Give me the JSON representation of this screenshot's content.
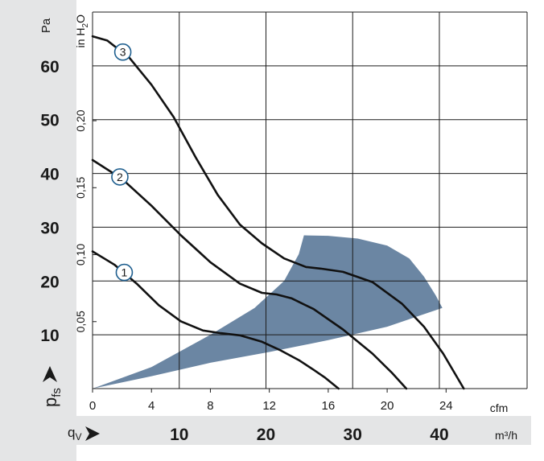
{
  "chart_data": {
    "type": "line",
    "y_primary": {
      "unit": "Pa",
      "ticks": [
        10,
        20,
        30,
        40,
        50,
        60
      ],
      "range": [
        0,
        70
      ]
    },
    "y_secondary": {
      "unit_main": "in H",
      "unit_sub": "2",
      "unit_tail": "O",
      "tick_labels": [
        "0,05",
        "0,10",
        "0,15",
        "0,20"
      ],
      "tick_values_pa": [
        12.45,
        24.9,
        37.35,
        49.8
      ]
    },
    "y_symbol": {
      "main": "p",
      "sub": "fs"
    },
    "x_primary": {
      "unit": "cfm",
      "ticks": [
        0,
        4,
        8,
        12,
        16,
        20,
        24
      ],
      "range": [
        0,
        29.5
      ]
    },
    "x_secondary": {
      "symbol_main": "q",
      "symbol_sub": "V",
      "unit": "m³/h",
      "tick_labels": [
        "10",
        "20",
        "30",
        "40"
      ],
      "tick_values_cfm": [
        5.886,
        11.772,
        17.658,
        23.544
      ]
    },
    "grid": true,
    "series": [
      {
        "marker": "1",
        "x": [
          0,
          1.5,
          3,
          4.5,
          6,
          7.5,
          8.7,
          10,
          11.5,
          12.7,
          14,
          15,
          15.8,
          16.7
        ],
        "y": [
          25.5,
          23,
          19.5,
          15.5,
          12.5,
          10.8,
          10.3,
          9.9,
          8.7,
          7.2,
          5.3,
          3.5,
          2,
          0
        ]
      },
      {
        "marker": "2",
        "x": [
          0,
          2,
          4,
          6,
          8,
          10,
          11.5,
          12.5,
          13.5,
          15,
          17,
          19,
          20.3,
          21.3
        ],
        "y": [
          42.5,
          39,
          34,
          28.5,
          23.5,
          19.5,
          17.8,
          17.5,
          16.8,
          14.8,
          11,
          6.5,
          3,
          0
        ]
      },
      {
        "marker": "3",
        "x": [
          0,
          1,
          2.5,
          4,
          5.5,
          7,
          8.5,
          10,
          11.5,
          13,
          14.5,
          15.5,
          17,
          19,
          21,
          22.5,
          23.8,
          25.2
        ],
        "y": [
          65.5,
          64.7,
          61.5,
          56.5,
          50.5,
          43,
          36,
          30.5,
          27,
          24.2,
          22.6,
          22.3,
          21.7,
          19.8,
          15.8,
          11.5,
          6.5,
          0
        ]
      }
    ],
    "operating_region": {
      "color": "#6b86a3",
      "x": [
        0,
        4,
        8,
        11,
        13,
        14,
        14.35,
        16,
        18,
        20,
        21.5,
        22.5,
        23.3,
        23.75,
        20,
        16,
        12,
        8,
        4,
        0
      ],
      "y": [
        0,
        4,
        10,
        15,
        20,
        25,
        28.5,
        28.4,
        27.9,
        26.6,
        24.2,
        20.8,
        17.3,
        15,
        11.5,
        9,
        6.8,
        4.8,
        2.3,
        0
      ]
    }
  }
}
